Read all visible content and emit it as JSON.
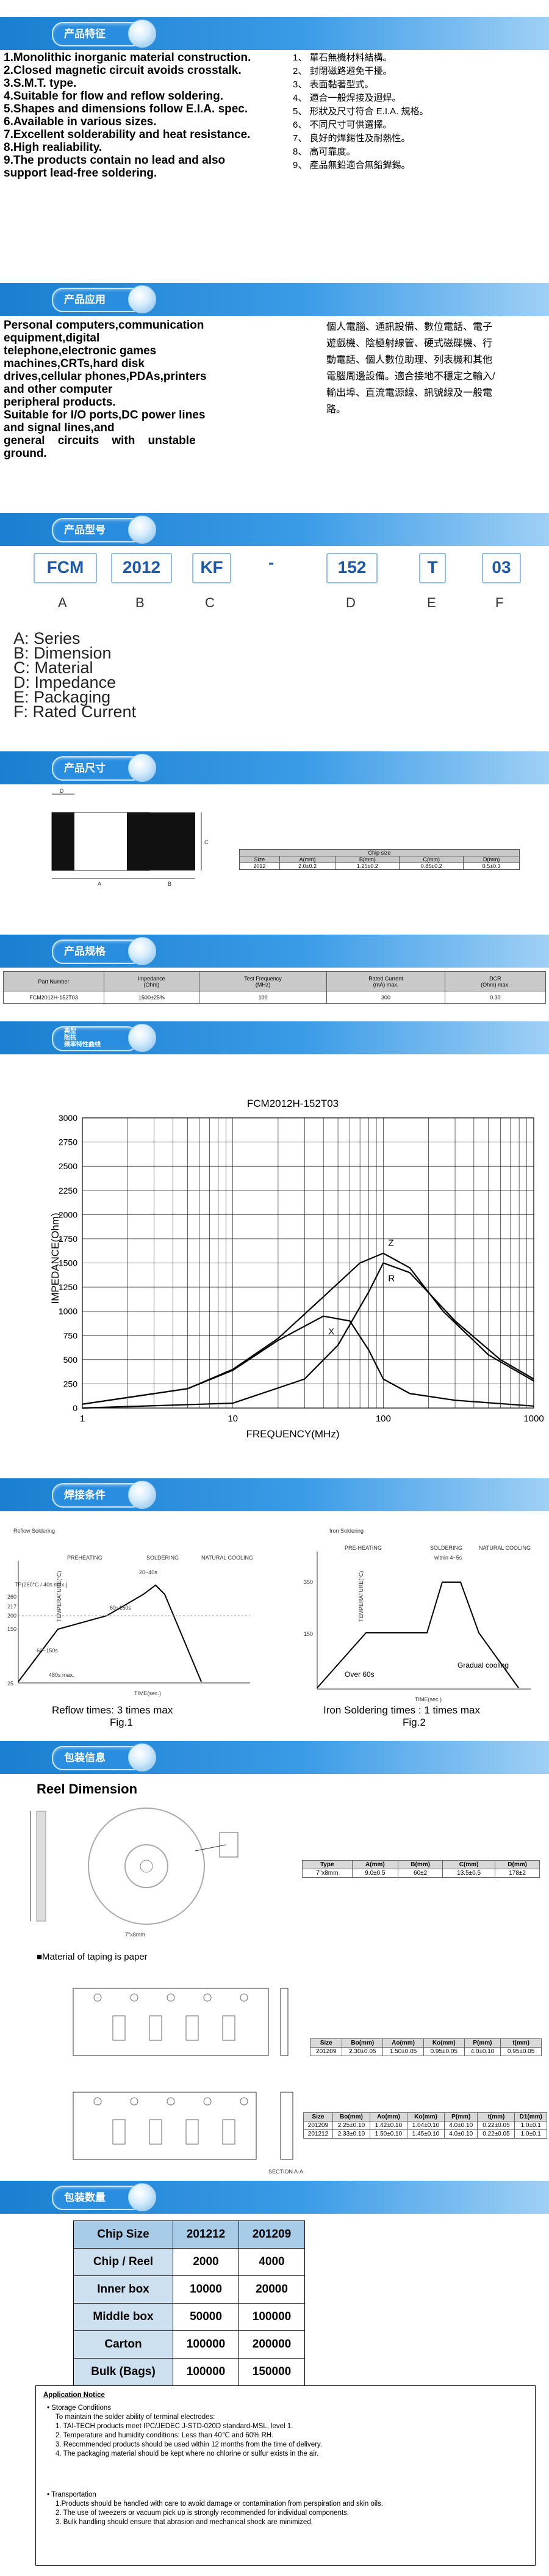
{
  "sections": {
    "features": "产品特征",
    "application": "产品应用",
    "part_number": "产品型号",
    "dimensions": "产品尺寸",
    "specification": "产品规格",
    "impedance_curve": [
      "典型",
      "阻抗",
      "频率特性曲线"
    ],
    "soldering": "焊接条件",
    "packaging": "包装信息",
    "quantity": "包装数量"
  },
  "features": {
    "en": [
      "1.Monolithic inorganic material construction.",
      "2.Closed magnetic circuit avoids crosstalk.",
      "3.S.M.T. type.",
      "4.Suitable for flow and reflow soldering.",
      "5.Shapes and dimensions follow E.I.A. spec.",
      "6.Available in various sizes.",
      "7.Excellent solderability and heat resistance.",
      "8.High realiability.",
      "9.The products contain no lead and also support lead-free soldering."
    ],
    "cn": [
      "1、 單石無機材料結構。",
      "2、 封閉磁路避免干擾。",
      "3、 表面黏著型式。",
      "4、 適合一般焊接及迴焊。",
      "5、 形狀及尺寸符合 E.I.A. 規格。",
      "6、 不同尺寸可供選擇。",
      "7、 良好的焊錫性及耐熱性。",
      "8、 高可靠度。",
      "9、 產品無鉛適合無鉛銲錫。"
    ]
  },
  "application": {
    "en": [
      "Personal computers,communication",
      "equipment,digital",
      "telephone,electronic games",
      "machines,CRTs,hard disk",
      "drives,cellular phones,PDAs,printers",
      "and other computer",
      "peripheral products.",
      "Suitable for I/O ports,DC power lines",
      "and signal lines,and",
      "general    circuits    with    unstable",
      "ground."
    ],
    "cn": [
      "個人電腦、通訊設備、數位電話、電子",
      "遊戲機、陰極射線管、硬式磁碟機、行",
      "動電話、個人數位助理、列表機和其他",
      "電腦周邊設備。適合接地不穩定之輸入/",
      "輸出埠、直流電源線、訊號線及一般電",
      "路。"
    ]
  },
  "part_number": {
    "boxes": [
      "FCM",
      "2012",
      "KF",
      "-",
      "152",
      "T",
      "03"
    ],
    "letters": [
      "A",
      "B",
      "C",
      "",
      "D",
      "E",
      "F"
    ],
    "legend": [
      "A: Series",
      "B: Dimension",
      "C: Material",
      "D: Impedance",
      "E: Packaging",
      "F: Rated Current"
    ]
  },
  "dimensions": {
    "labels": {
      "d": "D",
      "a": "A",
      "b": "B",
      "c": "C"
    },
    "table_title": "Chip size",
    "headers": [
      "Size",
      "A(mm)",
      "B(mm)",
      "C(mm)",
      "D(mm)"
    ],
    "row": [
      "2012",
      "2.0±0.2",
      "1.25±0.2",
      "0.85±0.2",
      "0.5±0.3"
    ]
  },
  "specification": {
    "headers": [
      "Part Number",
      "Impedance\n(Ohm)",
      "Test Frequency\n(MHz)",
      "Rated Current\n(mA) max.",
      "DCR\n(Ohm) max."
    ],
    "row": [
      "FCM2012H-152T03",
      "1500±25%",
      "100",
      "300",
      "0.30"
    ]
  },
  "chart_data": {
    "type": "line",
    "title": "FCM2012H-152T03",
    "xlabel": "FREQUENCY(MHz)",
    "ylabel": "IMPEDANCE(Ohm)",
    "xscale": "log",
    "xlim": [
      1,
      1000
    ],
    "ylim": [
      0,
      3000
    ],
    "xticks": [
      1,
      10,
      100,
      1000
    ],
    "yticks": [
      0,
      250,
      500,
      750,
      1000,
      1250,
      1500,
      1750,
      2000,
      2250,
      2500,
      2750,
      3000
    ],
    "grid": true,
    "series": [
      {
        "name": "Z",
        "x": [
          1,
          5,
          10,
          20,
          40,
          70,
          100,
          150,
          250,
          500,
          1000
        ],
        "values": [
          40,
          200,
          400,
          720,
          1150,
          1500,
          1600,
          1450,
          1000,
          550,
          280
        ]
      },
      {
        "name": "R",
        "x": [
          1,
          10,
          30,
          50,
          80,
          100,
          150,
          300,
          600,
          1000
        ],
        "values": [
          0,
          50,
          300,
          650,
          1200,
          1500,
          1400,
          900,
          500,
          300
        ]
      },
      {
        "name": "X",
        "x": [
          1,
          5,
          10,
          20,
          40,
          60,
          80,
          100,
          150,
          300,
          1000
        ],
        "values": [
          40,
          200,
          390,
          700,
          950,
          900,
          600,
          300,
          150,
          80,
          20
        ]
      }
    ]
  },
  "soldering": {
    "reflow": {
      "title": "Reflow Soldering",
      "phases": [
        "PREHEATING",
        "SOLDERING",
        "NATURAL COOLING"
      ],
      "peak": "TP(260°C / 40s max.)",
      "ylabel": "TEMPERATURE(°C)",
      "ticks": [
        "260",
        "217",
        "200",
        "150",
        "25"
      ],
      "t1": "60~150s",
      "t2": "60~150s",
      "t3": "20~40s",
      "t4": "480s max.",
      "xlabel": "TIME(sec.)",
      "caption": "Reflow times: 3 times max",
      "fig": "Fig.1"
    },
    "iron": {
      "title": "Iron Soldering",
      "phases": [
        "PRE-HEATING",
        "SOLDERING",
        "NATURAL COOLING"
      ],
      "within": "within 4~5s",
      "ylabel": "TEMPERATURE(°C)",
      "ticks": [
        "350",
        "150"
      ],
      "over": "Over 60s",
      "gradual": "Gradual  cooling",
      "xlabel": "TIME(sec.)",
      "caption": "Iron Soldering times : 1 times max",
      "fig": "Fig.2"
    }
  },
  "reel": {
    "title": "Reel Dimension",
    "diagram_label": "7\"x8mm",
    "headers": [
      "Type",
      "A(mm)",
      "B(mm)",
      "C(mm)",
      "D(mm)"
    ],
    "row": [
      "7\"x8mm",
      "9.0±0.5",
      "60±2",
      "13.5±0.5",
      "178±2"
    ],
    "taping_note": "■Material of taping is paper"
  },
  "taping1": {
    "headers": [
      "Size",
      "Bo(mm)",
      "Ao(mm)",
      "Ko(mm)",
      "P(mm)",
      "t(mm)"
    ],
    "rows": [
      [
        "201209",
        "2.30±0.05",
        "1.50±0.05",
        "0.95±0.05",
        "4.0±0.10",
        "0.95±0.05"
      ]
    ]
  },
  "taping2": {
    "headers": [
      "Size",
      "Bo(mm)",
      "Ao(mm)",
      "Ko(mm)",
      "P(mm)",
      "t(mm)",
      "D1(mm)"
    ],
    "rows": [
      [
        "201209",
        "2.25±0.10",
        "1.42±0.10",
        "1.04±0.10",
        "4.0±0.10",
        "0.22±0.05",
        "1.0±0.1"
      ],
      [
        "201212",
        "2.33±0.10",
        "1.50±0.10",
        "1.45±0.10",
        "4.0±0.10",
        "0.22±0.05",
        "1.0±0.1"
      ]
    ],
    "section": "SECTION A-A"
  },
  "quantity": {
    "headers": [
      "Chip Size",
      "201212",
      "201209"
    ],
    "rows": [
      [
        "Chip / Reel",
        "2000",
        "4000"
      ],
      [
        "Inner box",
        "10000",
        "20000"
      ],
      [
        "Middle box",
        "50000",
        "100000"
      ],
      [
        "Carton",
        "100000",
        "200000"
      ],
      [
        "Bulk (Bags)",
        "100000",
        "150000"
      ]
    ]
  },
  "notice": {
    "title": "Application Notice",
    "storage_head": "Storage Conditions",
    "storage_intro": "To maintain the solder ability of terminal electrodes:",
    "storage": [
      "1. TAI-TECH products meet IPC/JEDEC J-STD-020D standard-MSL, level 1.",
      "2. Temperature and humidity conditions: Less than 40℃ and 60% RH.",
      "3. Recommended products should be used within 12 months from the time of delivery.",
      "4. The packaging material should be kept where no chlorine or sulfur exists in the air."
    ],
    "transport_head": "Transportation",
    "transport": [
      "1.Products should be handled with care to avoid damage or contamination from perspiration and skin oils.",
      "2. The use of tweezers or vacuum pick up is strongly recommended for individual components.",
      "3. Bulk handling should ensure that abrasion and mechanical shock are minimized."
    ]
  }
}
